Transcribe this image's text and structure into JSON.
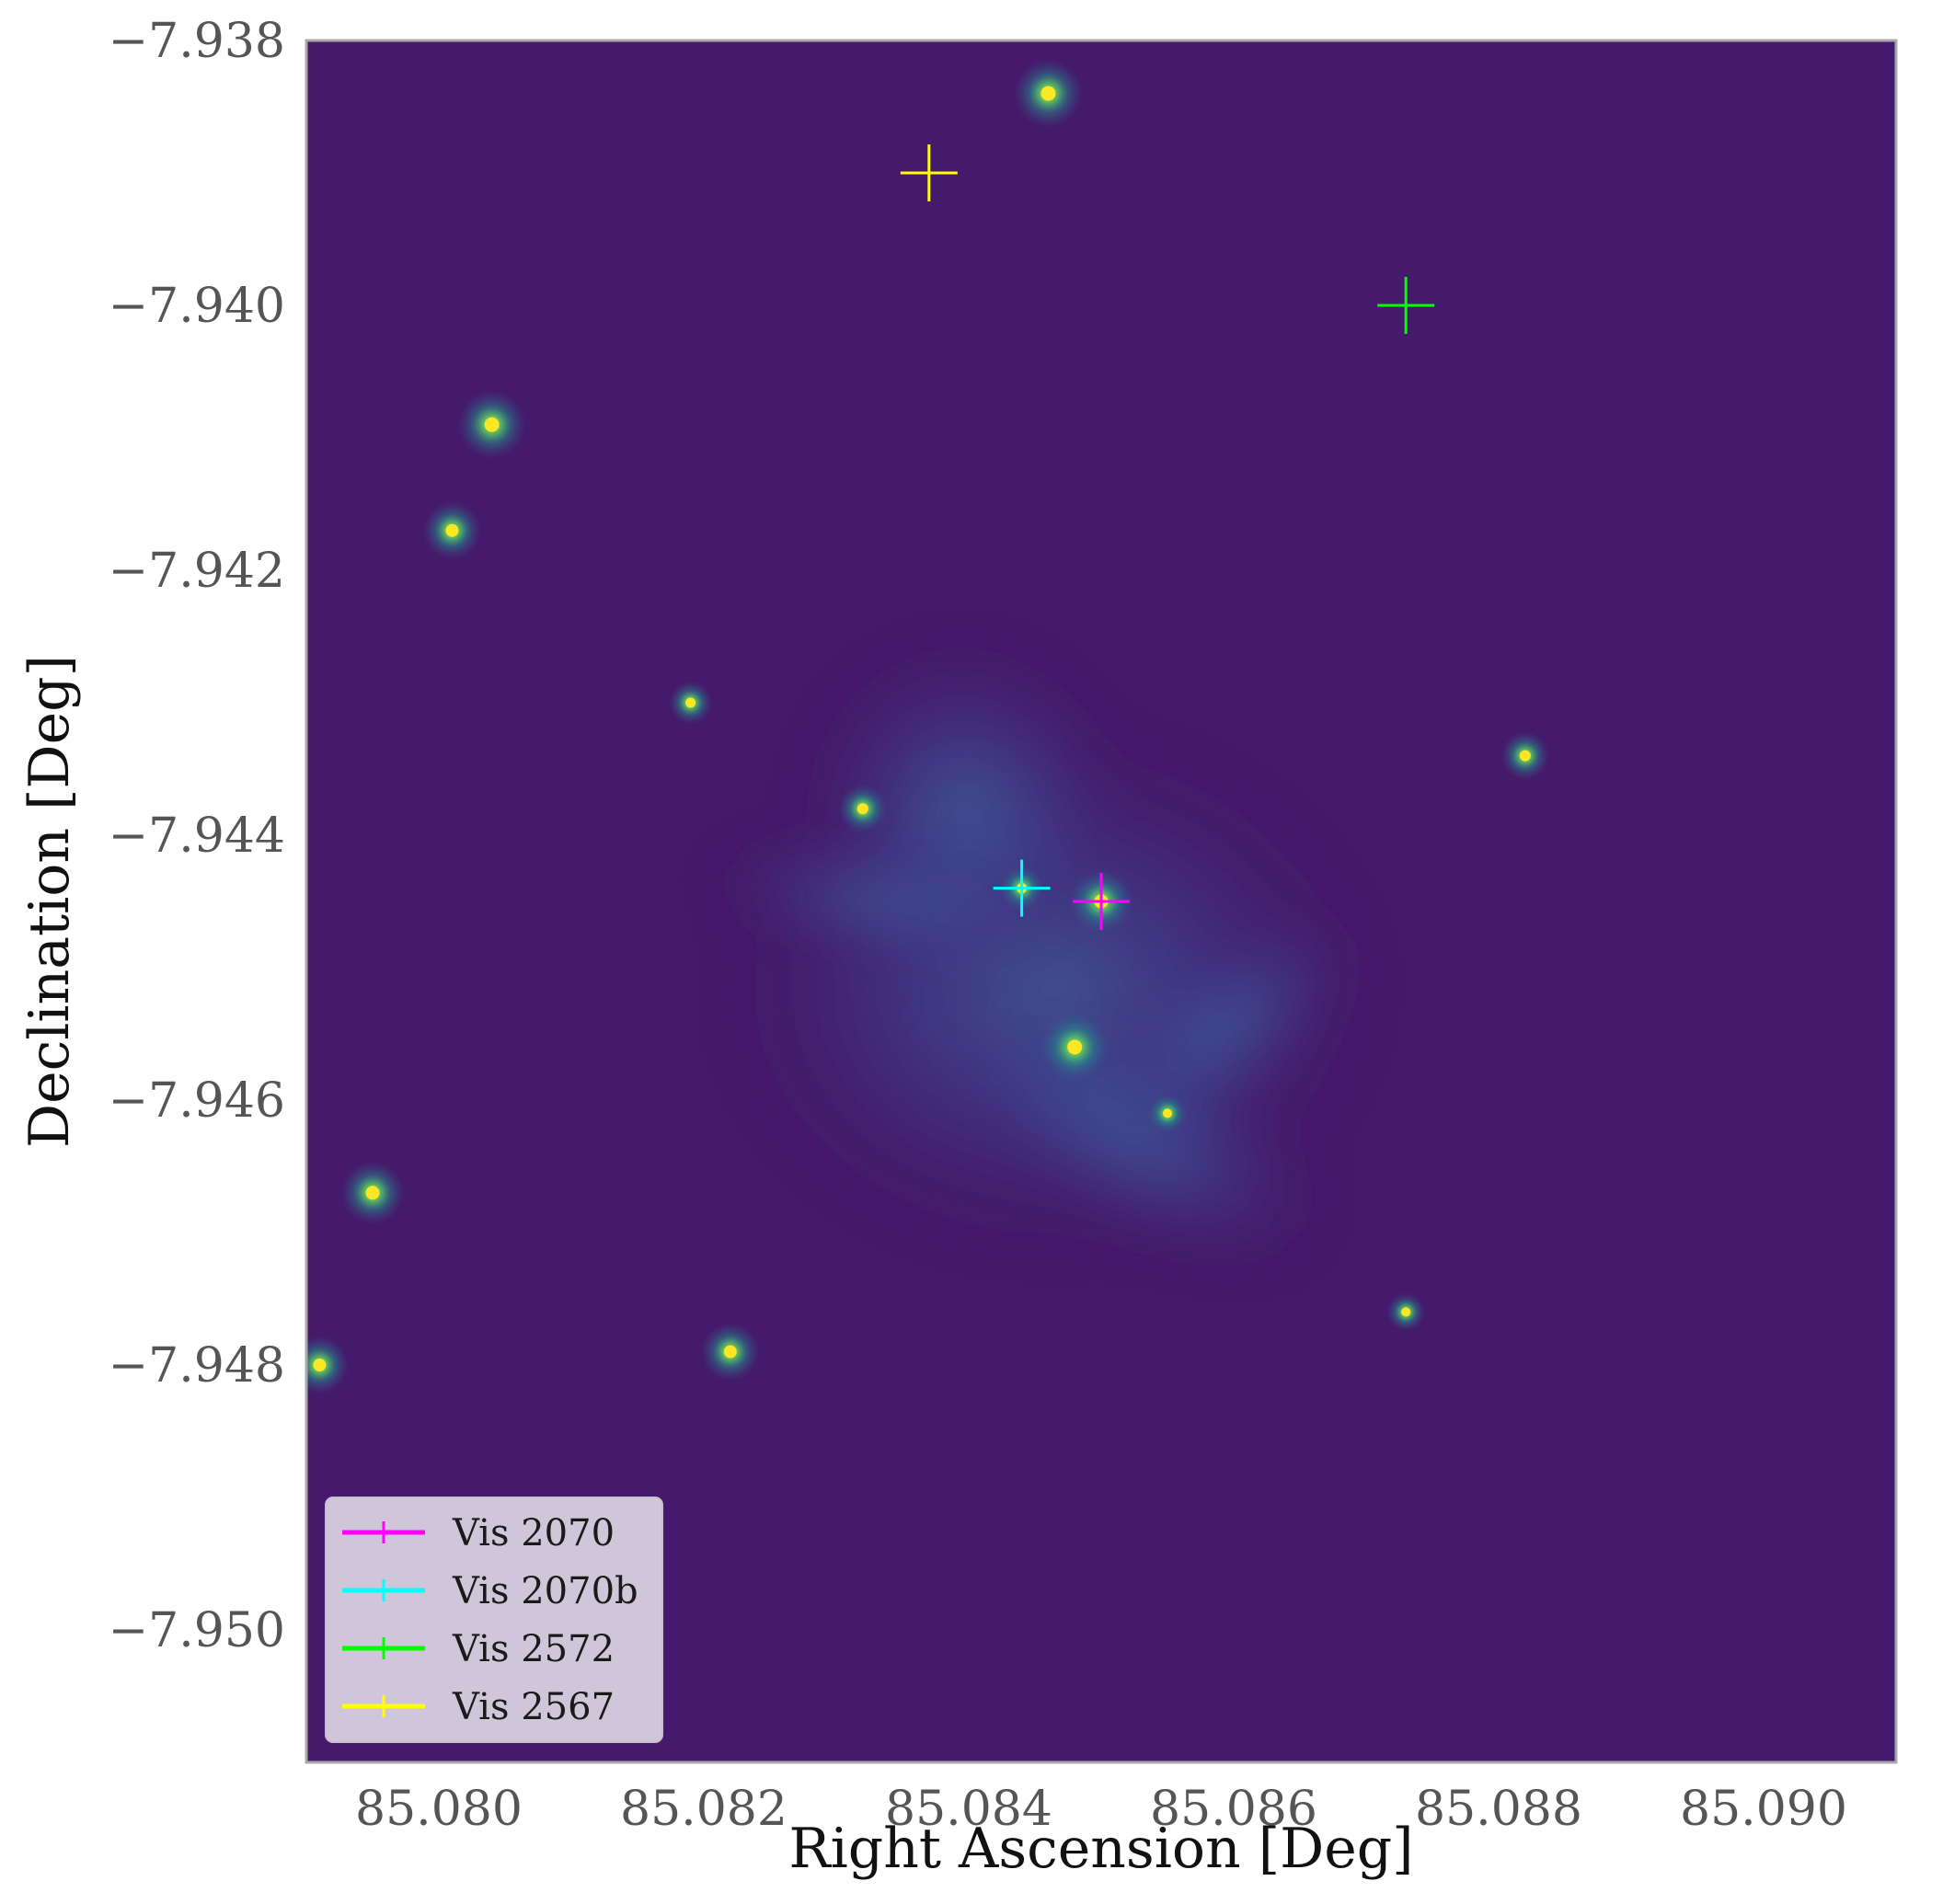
{
  "chart_data": {
    "type": "scatter",
    "xlabel": "Right Ascension [Deg]",
    "ylabel": "Declination [Deg]",
    "xlim": [
      85.079,
      85.091
    ],
    "ylim": [
      -7.951,
      -7.938
    ],
    "x_ticks": [
      85.08,
      85.082,
      85.084,
      85.086,
      85.088,
      85.09
    ],
    "x_tick_labels": [
      "85.080",
      "85.082",
      "85.084",
      "85.086",
      "85.088",
      "85.090"
    ],
    "y_ticks": [
      -7.938,
      -7.94,
      -7.942,
      -7.944,
      -7.946,
      -7.948,
      -7.95
    ],
    "y_tick_labels": [
      "−7.938",
      "−7.940",
      "−7.942",
      "−7.944",
      "−7.946",
      "−7.948",
      "−7.950"
    ],
    "grid": false,
    "legend_position": "lower-left",
    "background": "image",
    "image_colormap": "viridis",
    "image_background_color": "#45196b",
    "series": [
      {
        "name": "Vis 2070",
        "color": "#ff00ff",
        "marker": "+",
        "x": 85.085,
        "y": -7.9445
      },
      {
        "name": "Vis 2070b",
        "color": "#00ffff",
        "marker": "+",
        "x": 85.0844,
        "y": -7.9444
      },
      {
        "name": "Vis 2572",
        "color": "#00ff00",
        "marker": "+",
        "x": 85.0873,
        "y": -7.94
      },
      {
        "name": "Vis 2567",
        "color": "#ffff00",
        "marker": "+",
        "x": 85.0837,
        "y": -7.939
      }
    ],
    "image_sources": [
      {
        "x": 85.0846,
        "y": -7.9384,
        "brightness": 1.0
      },
      {
        "x": 85.0804,
        "y": -7.9409,
        "brightness": 1.0
      },
      {
        "x": 85.0801,
        "y": -7.9417,
        "brightness": 0.8
      },
      {
        "x": 85.0819,
        "y": -7.943,
        "brightness": 0.5
      },
      {
        "x": 85.0832,
        "y": -7.9438,
        "brightness": 0.6
      },
      {
        "x": 85.0882,
        "y": -7.9434,
        "brightness": 0.6
      },
      {
        "x": 85.0844,
        "y": -7.9444,
        "brightness": 0.5
      },
      {
        "x": 85.085,
        "y": -7.9445,
        "brightness": 0.9
      },
      {
        "x": 85.0848,
        "y": -7.9456,
        "brightness": 1.0
      },
      {
        "x": 85.0855,
        "y": -7.9461,
        "brightness": 0.4
      },
      {
        "x": 85.0795,
        "y": -7.9467,
        "brightness": 0.9
      },
      {
        "x": 85.0873,
        "y": -7.9476,
        "brightness": 0.4
      },
      {
        "x": 85.0822,
        "y": -7.9479,
        "brightness": 0.8
      },
      {
        "x": 85.0791,
        "y": -7.948,
        "brightness": 0.8
      }
    ]
  }
}
